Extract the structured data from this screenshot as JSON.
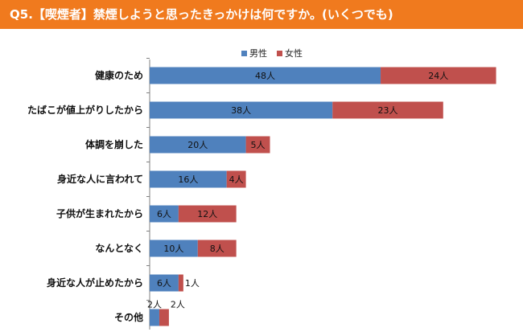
{
  "header": {
    "title": "Q5.【喫煙者】禁煙しようと思ったきっかけは何ですか。(いくつでも)"
  },
  "legend": {
    "male": "男性",
    "female": "女性"
  },
  "colors": {
    "header": "#f07a1e",
    "male": "#4f81bd",
    "female": "#c0504d"
  },
  "unit": "人",
  "chart_data": {
    "type": "bar",
    "orientation": "horizontal",
    "stacked": true,
    "categories": [
      "健康のため",
      "たばこが値上がりしたから",
      "体調を崩した",
      "身近な人に言われて",
      "子供が生まれたから",
      "なんとなく",
      "身近な人が止めたから",
      "その他"
    ],
    "series": [
      {
        "name": "男性",
        "values": [
          48,
          38,
          20,
          16,
          6,
          10,
          6,
          2
        ]
      },
      {
        "name": "女性",
        "values": [
          24,
          23,
          5,
          4,
          12,
          8,
          1,
          2
        ]
      }
    ],
    "data_labels": [
      [
        "48人",
        "38人",
        "20人",
        "16人",
        "6人",
        "10人",
        "6人",
        "2人"
      ],
      [
        "24人",
        "23人",
        "5人",
        "4人",
        "12人",
        "8人",
        "1人",
        "2人"
      ]
    ],
    "legend_position": "top",
    "grid": false
  }
}
